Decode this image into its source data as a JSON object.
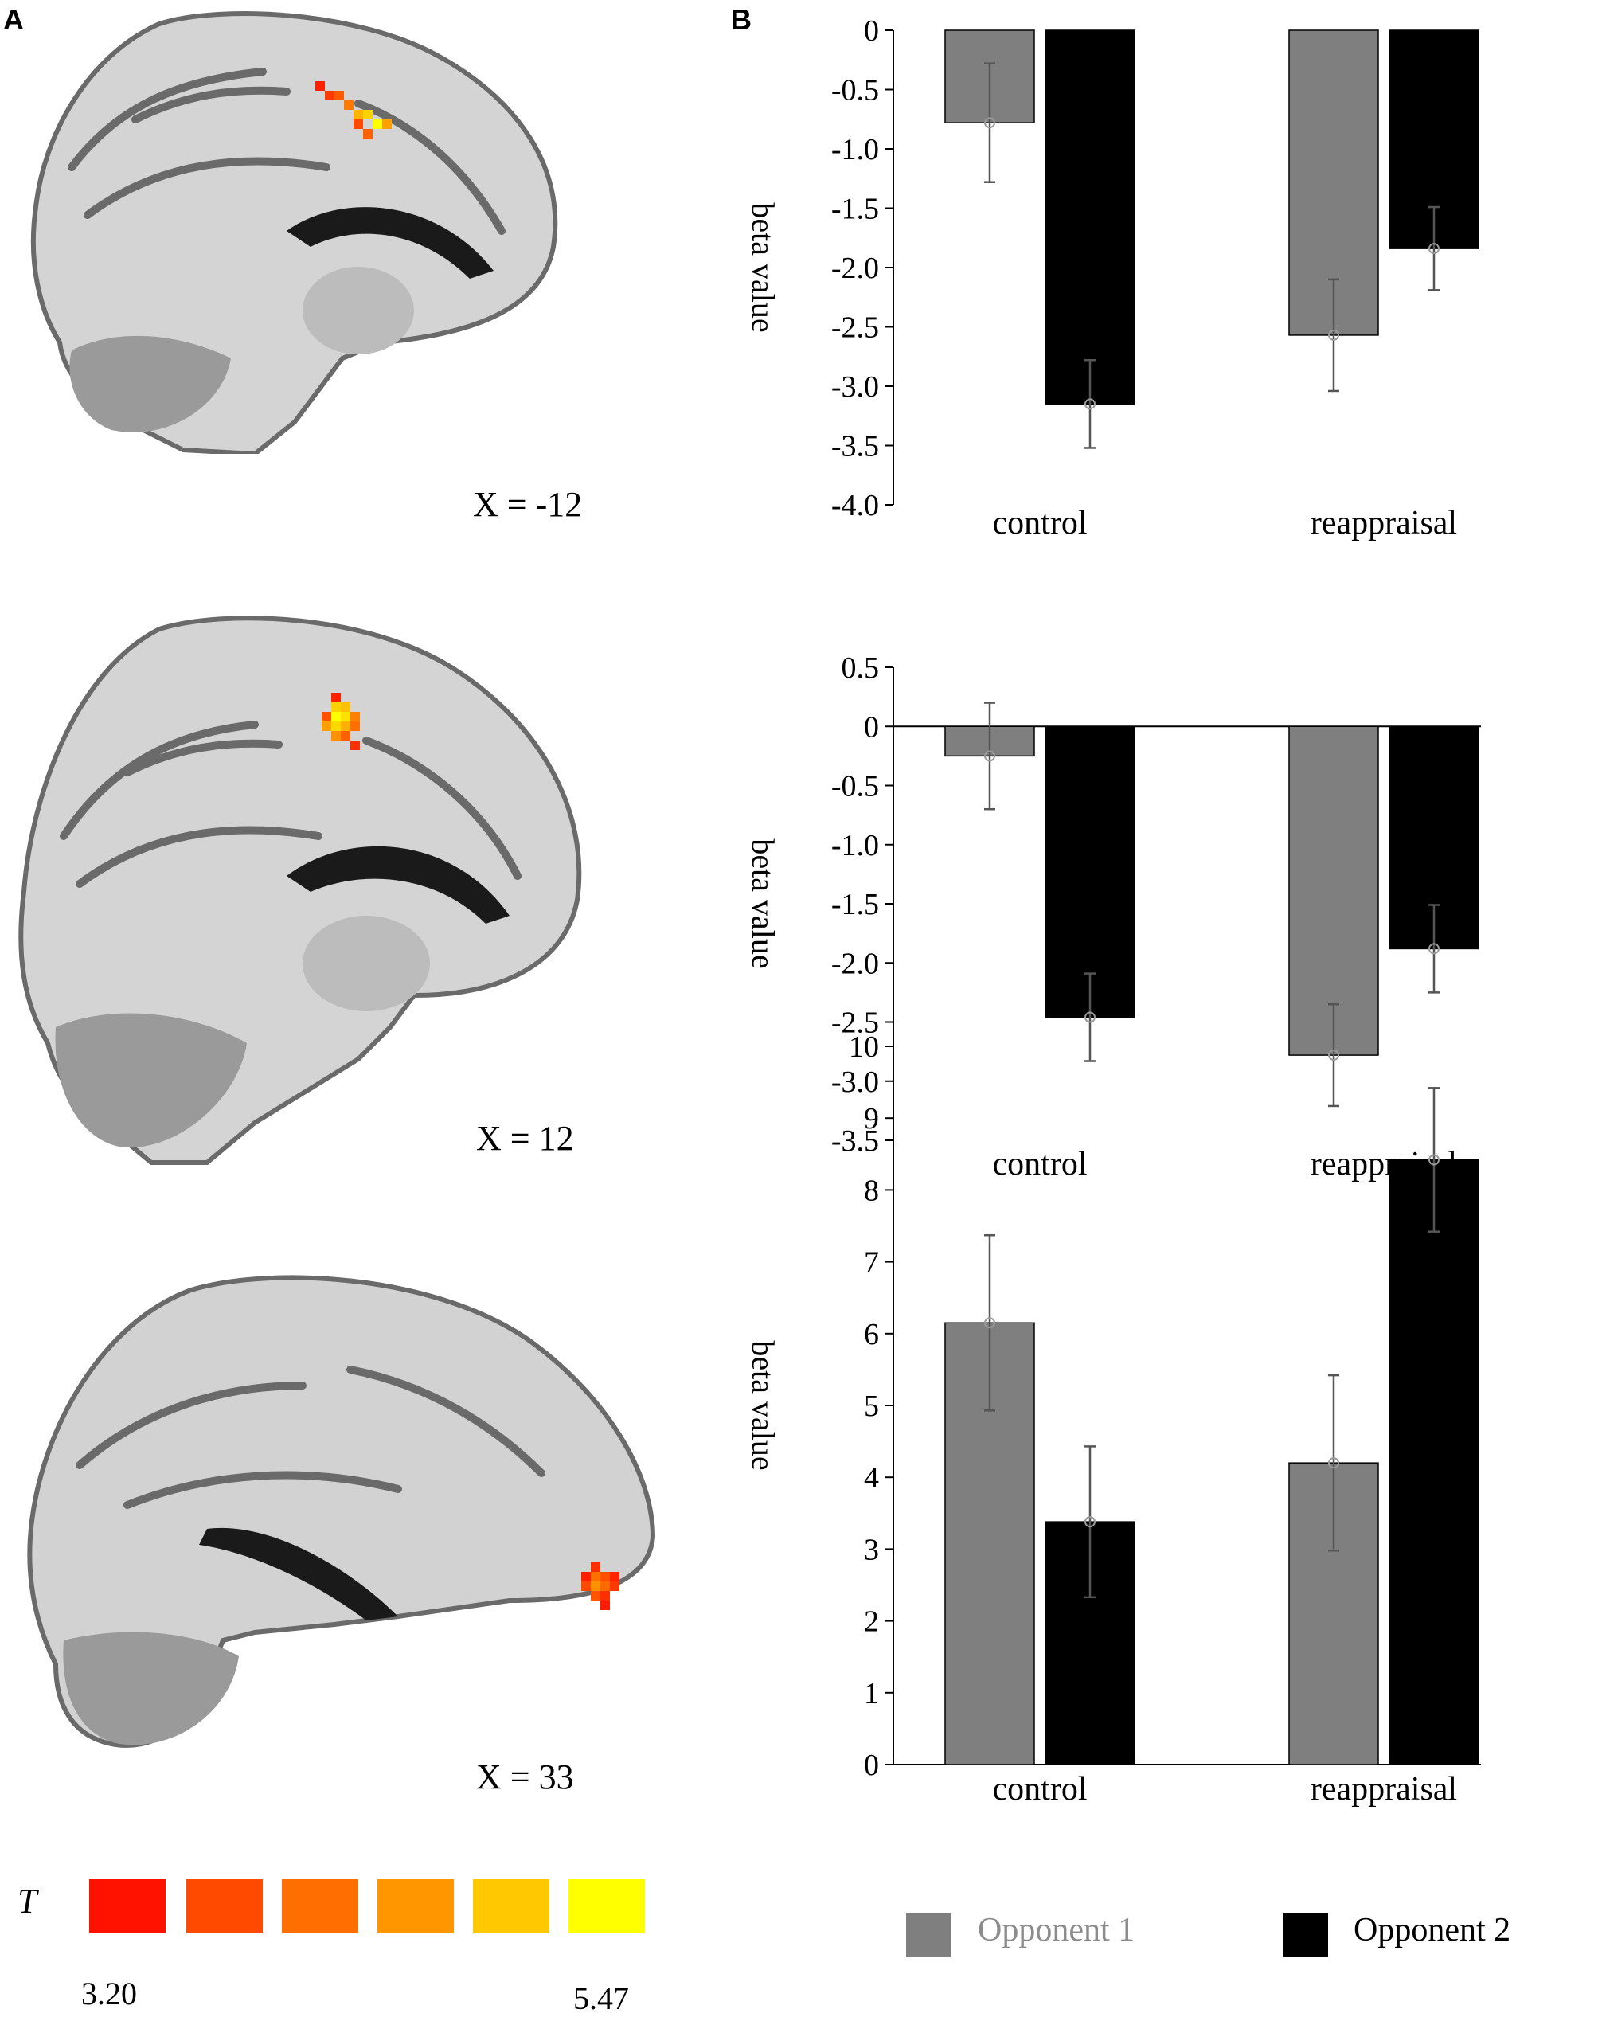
{
  "panel_labels": {
    "a": "A",
    "b": "B"
  },
  "brain_slices": [
    {
      "coord_label": "X = -12"
    },
    {
      "coord_label": "X = 12"
    },
    {
      "coord_label": "X = 33"
    }
  ],
  "colorbar": {
    "title": "T",
    "min_label": "3.20",
    "max_label": "5.47",
    "colors": [
      "#ff1200",
      "#ff4a00",
      "#ff6e00",
      "#ff9600",
      "#ffc800",
      "#ffff00"
    ]
  },
  "legend": {
    "items": [
      {
        "label": "Opponent 1",
        "color": "#7f7f7f",
        "text_color": "#8c8c8c"
      },
      {
        "label": "Opponent 2",
        "color": "#000000",
        "text_color": "#000000"
      }
    ]
  },
  "chart_data": [
    {
      "type": "bar",
      "categories": [
        "control",
        "reappraisal"
      ],
      "ylabel": "beta value",
      "ylim": [
        -4.0,
        0
      ],
      "yticks": [
        "0",
        "-0.5",
        "-1.0",
        "-1.5",
        "-2.0",
        "-2.5",
        "-3.0",
        "-3.5",
        "-4.0"
      ],
      "zero_line": false,
      "series": [
        {
          "name": "Opponent 1",
          "values": [
            -0.78,
            -2.57
          ],
          "errors": [
            0.5,
            0.47
          ]
        },
        {
          "name": "Opponent 2",
          "values": [
            -3.15,
            -1.84
          ],
          "errors": [
            0.37,
            0.35
          ]
        }
      ]
    },
    {
      "type": "bar",
      "categories": [
        "control",
        "reappraisal"
      ],
      "ylabel": "beta value",
      "ylim": [
        -3.5,
        0.5
      ],
      "yticks": [
        "0.5",
        "0",
        "-0.5",
        "-1.0",
        "-1.5",
        "-2.0",
        "-2.5",
        "-3.0",
        "-3.5"
      ],
      "zero_line": true,
      "series": [
        {
          "name": "Opponent 1",
          "values": [
            -0.25,
            -2.78
          ],
          "errors": [
            0.45,
            0.43
          ]
        },
        {
          "name": "Opponent 2",
          "values": [
            -2.46,
            -1.88
          ],
          "errors": [
            0.37,
            0.37
          ]
        }
      ]
    },
    {
      "type": "bar",
      "categories": [
        "control",
        "reappraisal"
      ],
      "ylabel": "beta value",
      "ylim": [
        0,
        10
      ],
      "yticks": [
        "10",
        "9",
        "8",
        "7",
        "6",
        "5",
        "4",
        "3",
        "2",
        "1",
        "0"
      ],
      "zero_line": false,
      "series": [
        {
          "name": "Opponent 1",
          "values": [
            6.15,
            4.2
          ],
          "errors": [
            1.22,
            1.22
          ]
        },
        {
          "name": "Opponent 2",
          "values": [
            3.38,
            8.42
          ],
          "errors": [
            1.05,
            1.0
          ]
        }
      ]
    }
  ]
}
